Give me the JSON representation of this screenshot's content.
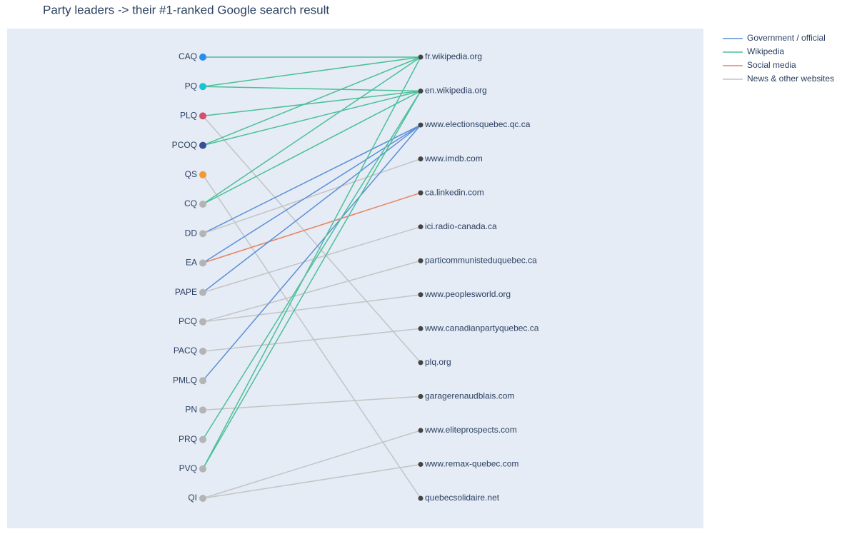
{
  "title": "Party leaders -> their #1-ranked Google search result",
  "legend": [
    {
      "name": "Government / official",
      "color": "#5b8fd6"
    },
    {
      "name": "Wikipedia",
      "color": "#4cbf97"
    },
    {
      "name": "Social media",
      "color": "#e8825f"
    },
    {
      "name": "News & other websites",
      "color": "#c4c4c4"
    }
  ],
  "left_nodes": [
    {
      "label": "CAQ",
      "color": "#2b8cf0"
    },
    {
      "label": "PQ",
      "color": "#19c3d4"
    },
    {
      "label": "PLQ",
      "color": "#d64f6e"
    },
    {
      "label": "PCOQ",
      "color": "#3b4d9a"
    },
    {
      "label": "QS",
      "color": "#f29a2e"
    },
    {
      "label": "CQ",
      "color": "#b4b4b4"
    },
    {
      "label": "DD",
      "color": "#b4b4b4"
    },
    {
      "label": "EA",
      "color": "#b4b4b4"
    },
    {
      "label": "PAPE",
      "color": "#b4b4b4"
    },
    {
      "label": "PCQ",
      "color": "#b4b4b4"
    },
    {
      "label": "PACQ",
      "color": "#b4b4b4"
    },
    {
      "label": "PMLQ",
      "color": "#b4b4b4"
    },
    {
      "label": "PN",
      "color": "#b4b4b4"
    },
    {
      "label": "PRQ",
      "color": "#b4b4b4"
    },
    {
      "label": "PVQ",
      "color": "#b4b4b4"
    },
    {
      "label": "QI",
      "color": "#b4b4b4"
    }
  ],
  "right_nodes": [
    {
      "label": "fr.wikipedia.org"
    },
    {
      "label": "en.wikipedia.org"
    },
    {
      "label": "www.electionsquebec.qc.ca"
    },
    {
      "label": "www.imdb.com"
    },
    {
      "label": "ca.linkedin.com"
    },
    {
      "label": "ici.radio-canada.ca"
    },
    {
      "label": "particommunisteduquebec.ca"
    },
    {
      "label": "www.peoplesworld.org"
    },
    {
      "label": "www.canadianpartyquebec.ca"
    },
    {
      "label": "plq.org"
    },
    {
      "label": "garagerenaudblais.com"
    },
    {
      "label": "www.eliteprospects.com"
    },
    {
      "label": "www.remax-quebec.com"
    },
    {
      "label": "quebecsolidaire.net"
    }
  ],
  "edges": [
    {
      "from": "CAQ",
      "to": "fr.wikipedia.org",
      "kind": "Wikipedia"
    },
    {
      "from": "PQ",
      "to": "fr.wikipedia.org",
      "kind": "Wikipedia"
    },
    {
      "from": "PQ",
      "to": "en.wikipedia.org",
      "kind": "Wikipedia"
    },
    {
      "from": "PLQ",
      "to": "en.wikipedia.org",
      "kind": "Wikipedia"
    },
    {
      "from": "PLQ",
      "to": "plq.org",
      "kind": "News & other websites"
    },
    {
      "from": "PCOQ",
      "to": "fr.wikipedia.org",
      "kind": "Wikipedia"
    },
    {
      "from": "PCOQ",
      "to": "en.wikipedia.org",
      "kind": "Wikipedia"
    },
    {
      "from": "QS",
      "to": "quebecsolidaire.net",
      "kind": "News & other websites"
    },
    {
      "from": "CQ",
      "to": "fr.wikipedia.org",
      "kind": "Wikipedia"
    },
    {
      "from": "CQ",
      "to": "en.wikipedia.org",
      "kind": "Wikipedia"
    },
    {
      "from": "DD",
      "to": "www.electionsquebec.qc.ca",
      "kind": "Government / official"
    },
    {
      "from": "DD",
      "to": "www.imdb.com",
      "kind": "News & other websites"
    },
    {
      "from": "EA",
      "to": "www.electionsquebec.qc.ca",
      "kind": "Government / official"
    },
    {
      "from": "EA",
      "to": "ca.linkedin.com",
      "kind": "Social media"
    },
    {
      "from": "PAPE",
      "to": "www.electionsquebec.qc.ca",
      "kind": "Government / official"
    },
    {
      "from": "PAPE",
      "to": "ici.radio-canada.ca",
      "kind": "News & other websites"
    },
    {
      "from": "PCQ",
      "to": "particommunisteduquebec.ca",
      "kind": "News & other websites"
    },
    {
      "from": "PCQ",
      "to": "www.peoplesworld.org",
      "kind": "News & other websites"
    },
    {
      "from": "PACQ",
      "to": "www.canadianpartyquebec.ca",
      "kind": "News & other websites"
    },
    {
      "from": "PMLQ",
      "to": "www.electionsquebec.qc.ca",
      "kind": "Government / official"
    },
    {
      "from": "PN",
      "to": "garagerenaudblais.com",
      "kind": "News & other websites"
    },
    {
      "from": "PRQ",
      "to": "en.wikipedia.org",
      "kind": "Wikipedia"
    },
    {
      "from": "PVQ",
      "to": "fr.wikipedia.org",
      "kind": "Wikipedia"
    },
    {
      "from": "PVQ",
      "to": "en.wikipedia.org",
      "kind": "Wikipedia"
    },
    {
      "from": "QI",
      "to": "www.eliteprospects.com",
      "kind": "News & other websites"
    },
    {
      "from": "QI",
      "to": "www.remax-quebec.com",
      "kind": "News & other websites"
    }
  ]
}
